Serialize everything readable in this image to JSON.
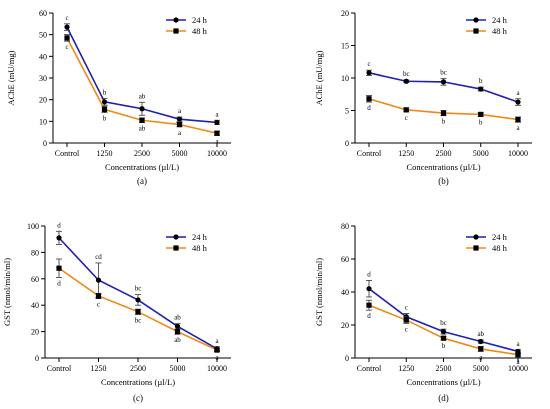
{
  "colors": {
    "series_24h": "#1f1fb3",
    "series_48h": "#f08a16",
    "axis": "#000000"
  },
  "chart_data": [
    {
      "panel": "(a)",
      "type": "line",
      "categories": [
        "Control",
        "1250",
        "2500",
        "5000",
        "10000"
      ],
      "xlabel": "Concentrations (µl/L)",
      "ylabel": "AChE (mU/mg)",
      "ylim": [
        0,
        60
      ],
      "yticks": [
        0,
        10,
        20,
        30,
        40,
        50,
        60
      ],
      "grid": false,
      "legend_position": "top-right",
      "series": [
        {
          "name": "24 h",
          "marker": "circle",
          "values": [
            53.5,
            19,
            15.8,
            11,
            9.5
          ],
          "errors": [
            1.5,
            1.5,
            3,
            1,
            1
          ],
          "letters": [
            "c",
            "b",
            "ab",
            "a",
            "a"
          ]
        },
        {
          "name": "48 h",
          "marker": "square",
          "values": [
            48.5,
            15.5,
            10.5,
            8.5,
            4.5
          ],
          "errors": [
            1.5,
            1.5,
            1,
            1,
            1
          ],
          "letters": [
            "c",
            "b",
            "ab",
            "a",
            "a"
          ]
        }
      ]
    },
    {
      "panel": "(b)",
      "type": "line",
      "categories": [
        "Control",
        "1250",
        "2500",
        "5000",
        "10000"
      ],
      "xlabel": "Concentrations (µl/L)",
      "ylabel": "AChE (mU/mg)",
      "ylim": [
        0,
        20
      ],
      "yticks": [
        0,
        5,
        10,
        15,
        20
      ],
      "grid": false,
      "legend_position": "top-right",
      "series": [
        {
          "name": "24 h",
          "marker": "circle",
          "values": [
            10.8,
            9.5,
            9.4,
            8.3,
            6.3
          ],
          "errors": [
            0.4,
            0.2,
            0.5,
            0.3,
            0.5
          ],
          "letters": [
            "c",
            "bc",
            "bc",
            "b",
            "a"
          ]
        },
        {
          "name": "48 h",
          "marker": "square",
          "values": [
            6.8,
            5.1,
            4.6,
            4.4,
            3.6
          ],
          "errors": [
            0.5,
            0.3,
            0.4,
            0.3,
            0.4
          ],
          "letters": [
            "d",
            "c",
            "b",
            "b",
            "a"
          ]
        }
      ]
    },
    {
      "panel": "(c)",
      "type": "line",
      "categories": [
        "Control",
        "1250",
        "2500",
        "5000",
        "10000"
      ],
      "xlabel": "Concentrations (µl/L)",
      "ylabel": "GST (nmol/min/ml)",
      "ylim": [
        0,
        100
      ],
      "yticks": [
        0,
        20,
        40,
        60,
        80,
        100
      ],
      "grid": false,
      "legend_position": "top-right",
      "series": [
        {
          "name": "24 h",
          "marker": "circle",
          "values": [
            91,
            59,
            44,
            24,
            7
          ],
          "errors": [
            5,
            13,
            4,
            2,
            1.5
          ],
          "letters": [
            "d",
            "cd",
            "bc",
            "ab",
            "a"
          ]
        },
        {
          "name": "48 h",
          "marker": "square",
          "values": [
            68,
            47,
            35,
            20,
            6
          ],
          "errors": [
            7,
            2,
            2,
            2,
            1
          ],
          "letters": [
            "d",
            "c",
            "bc",
            "ab",
            "a"
          ]
        }
      ]
    },
    {
      "panel": "(d)",
      "type": "line",
      "categories": [
        "Control",
        "1250",
        "2500",
        "5000",
        "10000"
      ],
      "xlabel": "Concentrations (µl/L)",
      "ylabel": "GST (nmol/min/ml)",
      "ylim": [
        0,
        80
      ],
      "yticks": [
        0,
        20,
        40,
        60,
        80
      ],
      "grid": false,
      "legend_position": "top-right",
      "series": [
        {
          "name": "24 h",
          "marker": "circle",
          "values": [
            42,
            25,
            16,
            10,
            4
          ],
          "errors": [
            5,
            2,
            1.5,
            1,
            1
          ],
          "letters": [
            "d",
            "c",
            "bc",
            "ab",
            "a"
          ]
        },
        {
          "name": "48 h",
          "marker": "square",
          "values": [
            32,
            23,
            12,
            5.5,
            2
          ],
          "errors": [
            3,
            2,
            1,
            1.5,
            0.8
          ],
          "letters": [
            "d",
            "c",
            "b",
            "a",
            "a"
          ]
        }
      ]
    }
  ]
}
